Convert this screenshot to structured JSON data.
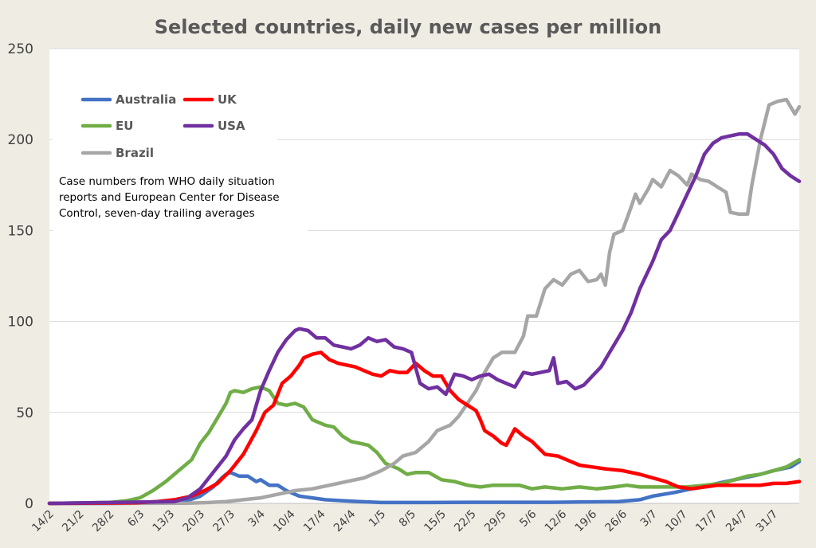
{
  "chart_data": {
    "type": "line",
    "title": "Selected countries, daily new cases per million",
    "ylim": [
      0,
      250
    ],
    "y_ticks": [
      0,
      50,
      100,
      150,
      200,
      250
    ],
    "grid": "horizontal",
    "x_start": "14/2",
    "x_end": "6/8",
    "x_tick_labels": [
      "14/2",
      "21/2",
      "28/2",
      "6/3",
      "13/3",
      "20/3",
      "27/3",
      "3/4",
      "10/4",
      "17/4",
      "24/4",
      "1/5",
      "8/5",
      "15/5",
      "22/5",
      "29/5",
      "5/6",
      "12/6",
      "19/6",
      "26/6",
      "3/7",
      "10/7",
      "17/7",
      "24/7",
      "31/7"
    ],
    "legend_position": "top-left",
    "annotation": "Case numbers from WHO daily situation reports and European Center for Disease Control, seven-day trailing averages",
    "series": [
      {
        "name": "Australia",
        "color": "#4472c4",
        "points": [
          [
            "14/2",
            0
          ],
          [
            "28/2",
            0
          ],
          [
            "10/3",
            0.2
          ],
          [
            "17/3",
            1.5
          ],
          [
            "20/3",
            4
          ],
          [
            "23/3",
            9
          ],
          [
            "25/3",
            14
          ],
          [
            "26/3",
            16
          ],
          [
            "27/3",
            17
          ],
          [
            "29/3",
            15
          ],
          [
            "31/3",
            15
          ],
          [
            "2/4",
            12
          ],
          [
            "3/4",
            13
          ],
          [
            "5/4",
            10
          ],
          [
            "7/4",
            10
          ],
          [
            "9/4",
            7
          ],
          [
            "12/4",
            4
          ],
          [
            "15/4",
            3
          ],
          [
            "18/4",
            2
          ],
          [
            "22/4",
            1.5
          ],
          [
            "26/4",
            1
          ],
          [
            "1/5",
            0.5
          ],
          [
            "12/5",
            0.5
          ],
          [
            "22/5",
            0.6
          ],
          [
            "10/6",
            0.6
          ],
          [
            "25/6",
            1
          ],
          [
            "30/6",
            2
          ],
          [
            "3/7",
            4
          ],
          [
            "8/7",
            6
          ],
          [
            "12/7",
            8
          ],
          [
            "16/7",
            10
          ],
          [
            "20/7",
            12
          ],
          [
            "24/7",
            14
          ],
          [
            "28/7",
            16
          ],
          [
            "31/7",
            18
          ],
          [
            "4/8",
            20
          ],
          [
            "6/8",
            23
          ]
        ]
      },
      {
        "name": "EU",
        "color": "#70ad47",
        "points": [
          [
            "14/2",
            0
          ],
          [
            "28/2",
            0.5
          ],
          [
            "3/3",
            1.5
          ],
          [
            "6/3",
            3
          ],
          [
            "9/3",
            7
          ],
          [
            "12/3",
            12
          ],
          [
            "15/3",
            18
          ],
          [
            "18/3",
            24
          ],
          [
            "20/3",
            33
          ],
          [
            "22/3",
            39
          ],
          [
            "24/3",
            47
          ],
          [
            "26/3",
            55
          ],
          [
            "27/3",
            61
          ],
          [
            "28/3",
            62
          ],
          [
            "30/3",
            61
          ],
          [
            "1/4",
            63
          ],
          [
            "3/4",
            64
          ],
          [
            "5/4",
            62
          ],
          [
            "7/4",
            55
          ],
          [
            "9/4",
            54
          ],
          [
            "11/4",
            55
          ],
          [
            "13/4",
            53
          ],
          [
            "15/4",
            46
          ],
          [
            "18/4",
            43
          ],
          [
            "20/4",
            42
          ],
          [
            "22/4",
            37
          ],
          [
            "24/4",
            34
          ],
          [
            "26/4",
            33
          ],
          [
            "28/4",
            32
          ],
          [
            "30/4",
            28
          ],
          [
            "2/5",
            22
          ],
          [
            "5/5",
            19
          ],
          [
            "7/5",
            16
          ],
          [
            "9/5",
            17
          ],
          [
            "12/5",
            17
          ],
          [
            "15/5",
            13
          ],
          [
            "18/5",
            12
          ],
          [
            "21/5",
            10
          ],
          [
            "24/5",
            9
          ],
          [
            "27/5",
            10
          ],
          [
            "30/5",
            10
          ],
          [
            "2/6",
            10
          ],
          [
            "5/6",
            8
          ],
          [
            "8/6",
            9
          ],
          [
            "12/6",
            8
          ],
          [
            "16/6",
            9
          ],
          [
            "20/6",
            8
          ],
          [
            "24/6",
            9
          ],
          [
            "27/6",
            10
          ],
          [
            "30/6",
            9
          ],
          [
            "3/7",
            9
          ],
          [
            "7/7",
            9
          ],
          [
            "11/7",
            9
          ],
          [
            "15/7",
            10
          ],
          [
            "19/7",
            11
          ],
          [
            "22/7",
            13
          ],
          [
            "25/7",
            15
          ],
          [
            "28/7",
            16
          ],
          [
            "31/7",
            18
          ],
          [
            "3/8",
            20
          ],
          [
            "6/8",
            24
          ]
        ]
      },
      {
        "name": "Brazil",
        "color": "#a6a6a6",
        "points": [
          [
            "14/2",
            0
          ],
          [
            "17/3",
            0.1
          ],
          [
            "22/3",
            0.5
          ],
          [
            "26/3",
            1
          ],
          [
            "30/3",
            2
          ],
          [
            "3/4",
            3
          ],
          [
            "7/4",
            5
          ],
          [
            "11/4",
            7
          ],
          [
            "15/4",
            8
          ],
          [
            "19/4",
            10
          ],
          [
            "23/4",
            12
          ],
          [
            "27/4",
            14
          ],
          [
            "1/5",
            18
          ],
          [
            "4/5",
            22
          ],
          [
            "6/5",
            26
          ],
          [
            "9/5",
            28
          ],
          [
            "12/5",
            34
          ],
          [
            "14/5",
            40
          ],
          [
            "17/5",
            43
          ],
          [
            "19/5",
            48
          ],
          [
            "21/5",
            55
          ],
          [
            "23/5",
            62
          ],
          [
            "25/5",
            72
          ],
          [
            "27/5",
            80
          ],
          [
            "29/5",
            83
          ],
          [
            "1/6",
            83
          ],
          [
            "3/6",
            92
          ],
          [
            "4/6",
            103
          ],
          [
            "6/6",
            103
          ],
          [
            "8/6",
            118
          ],
          [
            "10/6",
            123
          ],
          [
            "12/6",
            120
          ],
          [
            "14/6",
            126
          ],
          [
            "16/6",
            128
          ],
          [
            "18/6",
            122
          ],
          [
            "20/6",
            123
          ],
          [
            "21/6",
            126
          ],
          [
            "22/6",
            120
          ],
          [
            "23/6",
            138
          ],
          [
            "24/6",
            148
          ],
          [
            "26/6",
            150
          ],
          [
            "28/6",
            163
          ],
          [
            "29/6",
            170
          ],
          [
            "30/6",
            165
          ],
          [
            "2/7",
            173
          ],
          [
            "3/7",
            178
          ],
          [
            "5/7",
            174
          ],
          [
            "7/7",
            183
          ],
          [
            "9/7",
            180
          ],
          [
            "11/7",
            175
          ],
          [
            "12/7",
            181
          ],
          [
            "14/7",
            178
          ],
          [
            "16/7",
            177
          ],
          [
            "18/7",
            174
          ],
          [
            "20/7",
            171
          ],
          [
            "21/7",
            160
          ],
          [
            "23/7",
            159
          ],
          [
            "25/7",
            159
          ],
          [
            "26/7",
            175
          ],
          [
            "28/7",
            200
          ],
          [
            "30/7",
            219
          ],
          [
            "1/8",
            221
          ],
          [
            "3/8",
            222
          ],
          [
            "5/8",
            214
          ],
          [
            "6/8",
            218
          ]
        ]
      },
      {
        "name": "UK",
        "color": "#ff0000",
        "points": [
          [
            "14/2",
            0
          ],
          [
            "5/3",
            0.3
          ],
          [
            "10/3",
            1
          ],
          [
            "14/3",
            2
          ],
          [
            "18/3",
            4
          ],
          [
            "21/3",
            7
          ],
          [
            "24/3",
            11
          ],
          [
            "27/3",
            18
          ],
          [
            "30/3",
            27
          ],
          [
            "2/4",
            40
          ],
          [
            "4/4",
            50
          ],
          [
            "6/4",
            54
          ],
          [
            "8/4",
            66
          ],
          [
            "10/4",
            70
          ],
          [
            "12/4",
            76
          ],
          [
            "13/4",
            80
          ],
          [
            "15/4",
            82
          ],
          [
            "17/4",
            83
          ],
          [
            "19/4",
            79
          ],
          [
            "21/4",
            77
          ],
          [
            "23/4",
            76
          ],
          [
            "25/4",
            75
          ],
          [
            "27/4",
            73
          ],
          [
            "29/4",
            71
          ],
          [
            "1/5",
            70
          ],
          [
            "3/5",
            73
          ],
          [
            "5/5",
            72
          ],
          [
            "7/5",
            72
          ],
          [
            "9/5",
            77
          ],
          [
            "11/5",
            73
          ],
          [
            "13/5",
            70
          ],
          [
            "15/5",
            70
          ],
          [
            "17/5",
            62
          ],
          [
            "19/5",
            57
          ],
          [
            "21/5",
            54
          ],
          [
            "23/5",
            51
          ],
          [
            "24/5",
            46
          ],
          [
            "25/5",
            40
          ],
          [
            "27/5",
            37
          ],
          [
            "29/5",
            33
          ],
          [
            "30/5",
            32
          ],
          [
            "1/6",
            41
          ],
          [
            "3/6",
            37
          ],
          [
            "5/6",
            34
          ],
          [
            "8/6",
            27
          ],
          [
            "11/6",
            26
          ],
          [
            "13/6",
            24
          ],
          [
            "16/6",
            21
          ],
          [
            "19/6",
            20
          ],
          [
            "22/6",
            19
          ],
          [
            "26/6",
            18
          ],
          [
            "30/6",
            16
          ],
          [
            "3/7",
            14
          ],
          [
            "6/7",
            12
          ],
          [
            "9/7",
            9
          ],
          [
            "12/7",
            8
          ],
          [
            "15/7",
            9
          ],
          [
            "18/7",
            10
          ],
          [
            "21/7",
            10
          ],
          [
            "24/7",
            10
          ],
          [
            "28/7",
            10
          ],
          [
            "31/7",
            11
          ],
          [
            "3/8",
            11
          ],
          [
            "6/8",
            12
          ]
        ]
      },
      {
        "name": "USA",
        "color": "#7030a0",
        "points": [
          [
            "14/2",
            0
          ],
          [
            "14/3",
            1
          ],
          [
            "17/3",
            3
          ],
          [
            "20/3",
            8
          ],
          [
            "22/3",
            14
          ],
          [
            "24/3",
            20
          ],
          [
            "26/3",
            26
          ],
          [
            "28/3",
            35
          ],
          [
            "30/3",
            41
          ],
          [
            "1/4",
            46
          ],
          [
            "3/4",
            62
          ],
          [
            "5/4",
            73
          ],
          [
            "7/4",
            83
          ],
          [
            "9/4",
            90
          ],
          [
            "11/4",
            95
          ],
          [
            "12/4",
            96
          ],
          [
            "14/4",
            95
          ],
          [
            "16/4",
            91
          ],
          [
            "18/4",
            91
          ],
          [
            "20/4",
            87
          ],
          [
            "22/4",
            86
          ],
          [
            "24/4",
            85
          ],
          [
            "26/4",
            87
          ],
          [
            "28/4",
            91
          ],
          [
            "30/4",
            89
          ],
          [
            "2/5",
            90
          ],
          [
            "4/5",
            86
          ],
          [
            "6/5",
            85
          ],
          [
            "8/5",
            83
          ],
          [
            "10/5",
            66
          ],
          [
            "12/5",
            63
          ],
          [
            "14/5",
            64
          ],
          [
            "16/5",
            60
          ],
          [
            "18/5",
            71
          ],
          [
            "20/5",
            70
          ],
          [
            "22/5",
            68
          ],
          [
            "24/5",
            70
          ],
          [
            "26/5",
            71
          ],
          [
            "28/5",
            68
          ],
          [
            "30/5",
            66
          ],
          [
            "1/6",
            64
          ],
          [
            "3/6",
            72
          ],
          [
            "5/6",
            71
          ],
          [
            "7/6",
            72
          ],
          [
            "9/6",
            73
          ],
          [
            "10/6",
            80
          ],
          [
            "11/6",
            66
          ],
          [
            "13/6",
            67
          ],
          [
            "15/6",
            63
          ],
          [
            "17/6",
            65
          ],
          [
            "19/6",
            70
          ],
          [
            "21/6",
            75
          ],
          [
            "23/6",
            83
          ],
          [
            "26/6",
            95
          ],
          [
            "28/6",
            105
          ],
          [
            "30/6",
            118
          ],
          [
            "3/7",
            133
          ],
          [
            "5/7",
            145
          ],
          [
            "7/7",
            150
          ],
          [
            "9/7",
            160
          ],
          [
            "11/7",
            170
          ],
          [
            "13/7",
            180
          ],
          [
            "15/7",
            192
          ],
          [
            "17/7",
            198
          ],
          [
            "19/7",
            201
          ],
          [
            "21/7",
            202
          ],
          [
            "23/7",
            203
          ],
          [
            "25/7",
            203
          ],
          [
            "27/7",
            200
          ],
          [
            "29/7",
            197
          ],
          [
            "31/7",
            192
          ],
          [
            "2/8",
            184
          ],
          [
            "4/8",
            180
          ],
          [
            "6/8",
            177
          ]
        ]
      }
    ]
  }
}
